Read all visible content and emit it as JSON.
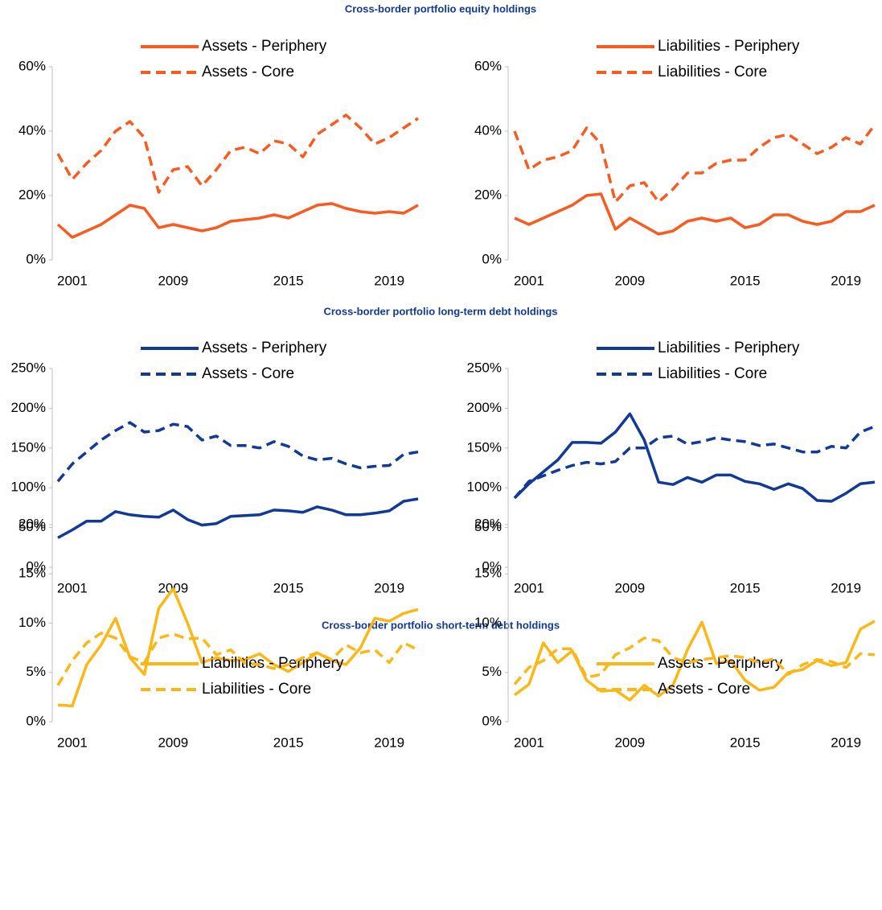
{
  "sections": [
    {
      "title": "Cross-border portfolio equity holdings"
    },
    {
      "title": "Cross-border portfolio long-term debt holdings"
    },
    {
      "title": "Cross-border portfolio short-term debt holdings"
    }
  ],
  "chart_data": [
    {
      "type": "line",
      "categories": [
        null,
        "2001",
        null,
        null,
        null,
        null,
        null,
        null,
        "2009",
        null,
        null,
        null,
        null,
        null,
        null,
        null,
        "2015",
        null,
        null,
        null,
        null,
        null,
        null,
        "2019",
        null,
        null
      ],
      "ylim": [
        0,
        60
      ],
      "yticks": [
        {
          "value": 0,
          "label": "0%"
        },
        {
          "value": 20,
          "label": "20%"
        },
        {
          "value": 40,
          "label": "40%"
        },
        {
          "value": 60,
          "label": "60%"
        }
      ],
      "series": [
        {
          "name": "Assets - Periphery",
          "color": "#fb5a1f",
          "style": "solid",
          "values": [
            11,
            7,
            9,
            11,
            14,
            17,
            16,
            10,
            11,
            10,
            9,
            10,
            12,
            12.5,
            13,
            14,
            13,
            15,
            17,
            17.5,
            16,
            15,
            14.5,
            15,
            14.5,
            17
          ]
        },
        {
          "name": "Assets - Core",
          "color": "#fb5a1f",
          "style": "dashed",
          "values": [
            33,
            25,
            30,
            34,
            40,
            43,
            38,
            21,
            28,
            29,
            23,
            28,
            34,
            35,
            33,
            37,
            36,
            32,
            39,
            42,
            45,
            41,
            36,
            38,
            41,
            44
          ]
        }
      ]
    },
    {
      "type": "line",
      "categories": [
        null,
        "2001",
        null,
        null,
        null,
        null,
        null,
        null,
        "2009",
        null,
        null,
        null,
        null,
        null,
        null,
        null,
        "2015",
        null,
        null,
        null,
        null,
        null,
        null,
        "2019",
        null,
        null
      ],
      "ylim": [
        0,
        60
      ],
      "yticks": [
        {
          "value": 0,
          "label": "0%"
        },
        {
          "value": 20,
          "label": "20%"
        },
        {
          "value": 40,
          "label": "40%"
        },
        {
          "value": 60,
          "label": "60%"
        }
      ],
      "series": [
        {
          "name": "Liabilities - Periphery",
          "color": "#fb5a1f",
          "style": "solid",
          "values": [
            13,
            11,
            13,
            15,
            17,
            20,
            20.5,
            9.5,
            13,
            10.5,
            8,
            9,
            12,
            13,
            12,
            13,
            10,
            11,
            14,
            14,
            12,
            11,
            12,
            15,
            15,
            17
          ]
        },
        {
          "name": "Liabilities - Core",
          "color": "#fb5a1f",
          "style": "dashed",
          "values": [
            40,
            28,
            31,
            32,
            34,
            41,
            36,
            18,
            23,
            24,
            18,
            22,
            27,
            27,
            30,
            31,
            31,
            35,
            38,
            39,
            36,
            33,
            35,
            38,
            36,
            42
          ]
        }
      ]
    },
    {
      "type": "line",
      "categories": [
        null,
        "2001",
        null,
        null,
        null,
        null,
        null,
        null,
        "2009",
        null,
        null,
        null,
        null,
        null,
        null,
        null,
        "2015",
        null,
        null,
        null,
        null,
        null,
        null,
        "2019",
        null,
        null
      ],
      "ylim": [
        0,
        250
      ],
      "yticks": [
        {
          "value": 0,
          "label": "0%"
        },
        {
          "value": 50,
          "label": "50%"
        },
        {
          "value": 100,
          "label": "100%"
        },
        {
          "value": 150,
          "label": "150%"
        },
        {
          "value": 200,
          "label": "200%"
        },
        {
          "value": 250,
          "label": "250%"
        }
      ],
      "series": [
        {
          "name": "Assets - Periphery",
          "color": "#10399a",
          "style": "solid",
          "values": [
            37,
            47,
            58,
            58,
            70,
            66,
            64,
            63,
            72,
            60,
            53,
            55,
            64,
            65,
            66,
            72,
            71,
            69,
            76,
            72,
            66,
            66,
            68,
            71,
            83,
            86
          ]
        },
        {
          "name": "Assets - Core",
          "color": "#10399a",
          "style": "dashed",
          "values": [
            108,
            130,
            145,
            160,
            172,
            182,
            170,
            172,
            180,
            177,
            160,
            165,
            153,
            153,
            150,
            158,
            152,
            140,
            135,
            137,
            130,
            125,
            127,
            128,
            142,
            145
          ]
        }
      ]
    },
    {
      "type": "line",
      "categories": [
        null,
        "2001",
        null,
        null,
        null,
        null,
        null,
        null,
        "2009",
        null,
        null,
        null,
        null,
        null,
        null,
        null,
        "2015",
        null,
        null,
        null,
        null,
        null,
        null,
        "2019",
        null,
        null
      ],
      "ylim": [
        0,
        250
      ],
      "yticks": [
        {
          "value": 0,
          "label": "0%"
        },
        {
          "value": 50,
          "label": "50%"
        },
        {
          "value": 100,
          "label": "100%"
        },
        {
          "value": 150,
          "label": "150%"
        },
        {
          "value": 200,
          "label": "200%"
        },
        {
          "value": 250,
          "label": "250%"
        }
      ],
      "series": [
        {
          "name": "Liabilities - Periphery",
          "color": "#10399a",
          "style": "solid",
          "values": [
            87,
            105,
            120,
            135,
            157,
            157,
            156,
            170,
            193,
            160,
            107,
            104,
            113,
            107,
            116,
            116,
            108,
            105,
            98,
            105,
            99,
            84,
            83,
            93,
            105,
            107
          ]
        },
        {
          "name": "Liabilities - Core",
          "color": "#10399a",
          "style": "dashed",
          "values": [
            87,
            108,
            115,
            122,
            128,
            132,
            130,
            133,
            150,
            150,
            163,
            165,
            155,
            158,
            163,
            160,
            158,
            153,
            155,
            150,
            145,
            145,
            152,
            150,
            170,
            177
          ]
        }
      ]
    },
    {
      "type": "line",
      "categories": [
        null,
        "2001",
        null,
        null,
        null,
        null,
        null,
        null,
        "2009",
        null,
        null,
        null,
        null,
        null,
        null,
        null,
        "2015",
        null,
        null,
        null,
        null,
        null,
        null,
        "2019",
        null,
        null
      ],
      "ylim": [
        0,
        20
      ],
      "yticks": [
        {
          "value": 0,
          "label": "0%"
        },
        {
          "value": 5,
          "label": "5%"
        },
        {
          "value": 10,
          "label": "10%"
        },
        {
          "value": 15,
          "label": "15%"
        },
        {
          "value": 20,
          "label": "20%"
        }
      ],
      "series": [
        {
          "name": "Liabilities - Periphery",
          "color": "#fdb714",
          "style": "solid",
          "values": [
            1.7,
            1.6,
            5.8,
            7.8,
            10.5,
            6.5,
            4.8,
            11.5,
            13.5,
            10,
            6,
            6.5,
            6.2,
            6.3,
            6.9,
            5.8,
            5.1,
            6,
            7,
            6.2,
            5.8,
            7.5,
            10.5,
            10.2,
            11,
            11.4
          ]
        },
        {
          "name": "Liabilities - Core",
          "color": "#fdb714",
          "style": "dashed",
          "values": [
            3.7,
            6.2,
            8,
            9,
            8.5,
            6.6,
            6,
            8.5,
            8.9,
            8.4,
            8.5,
            6.8,
            7.3,
            5.9,
            5.8,
            5.4,
            5.8,
            6.5,
            7,
            6.3,
            7.8,
            7,
            7.3,
            6,
            8,
            7.3
          ]
        }
      ]
    },
    {
      "type": "line",
      "categories": [
        null,
        "2001",
        null,
        null,
        null,
        null,
        null,
        null,
        "2009",
        null,
        null,
        null,
        null,
        null,
        null,
        null,
        "2015",
        null,
        null,
        null,
        null,
        null,
        null,
        "2019",
        null,
        null
      ],
      "ylim": [
        0,
        20
      ],
      "yticks": [
        {
          "value": 0,
          "label": "0%"
        },
        {
          "value": 5,
          "label": "5%"
        },
        {
          "value": 10,
          "label": "10%"
        },
        {
          "value": 15,
          "label": "15%"
        },
        {
          "value": 20,
          "label": "20%"
        }
      ],
      "series": [
        {
          "name": "Assets - Periphery",
          "color": "#fdb714",
          "style": "solid",
          "values": [
            2.7,
            3.8,
            8,
            6,
            7.2,
            4.2,
            3.1,
            3.2,
            2.2,
            3.7,
            2.6,
            3.7,
            7.3,
            10.1,
            5.9,
            6.2,
            4.2,
            3.2,
            3.5,
            5,
            5.3,
            6.2,
            5.7,
            6,
            9.4,
            10.2
          ]
        },
        {
          "name": "Assets - Core",
          "color": "#fdb714",
          "style": "dashed",
          "values": [
            3.8,
            5.5,
            6.2,
            7.4,
            7.4,
            4.5,
            4.8,
            6.8,
            7.5,
            8.5,
            8.2,
            6.5,
            6,
            6.3,
            6.5,
            6.7,
            6.5,
            6,
            6.4,
            4.8,
            5.8,
            6.3,
            6.1,
            5.5,
            6.9,
            6.8
          ]
        }
      ]
    }
  ]
}
